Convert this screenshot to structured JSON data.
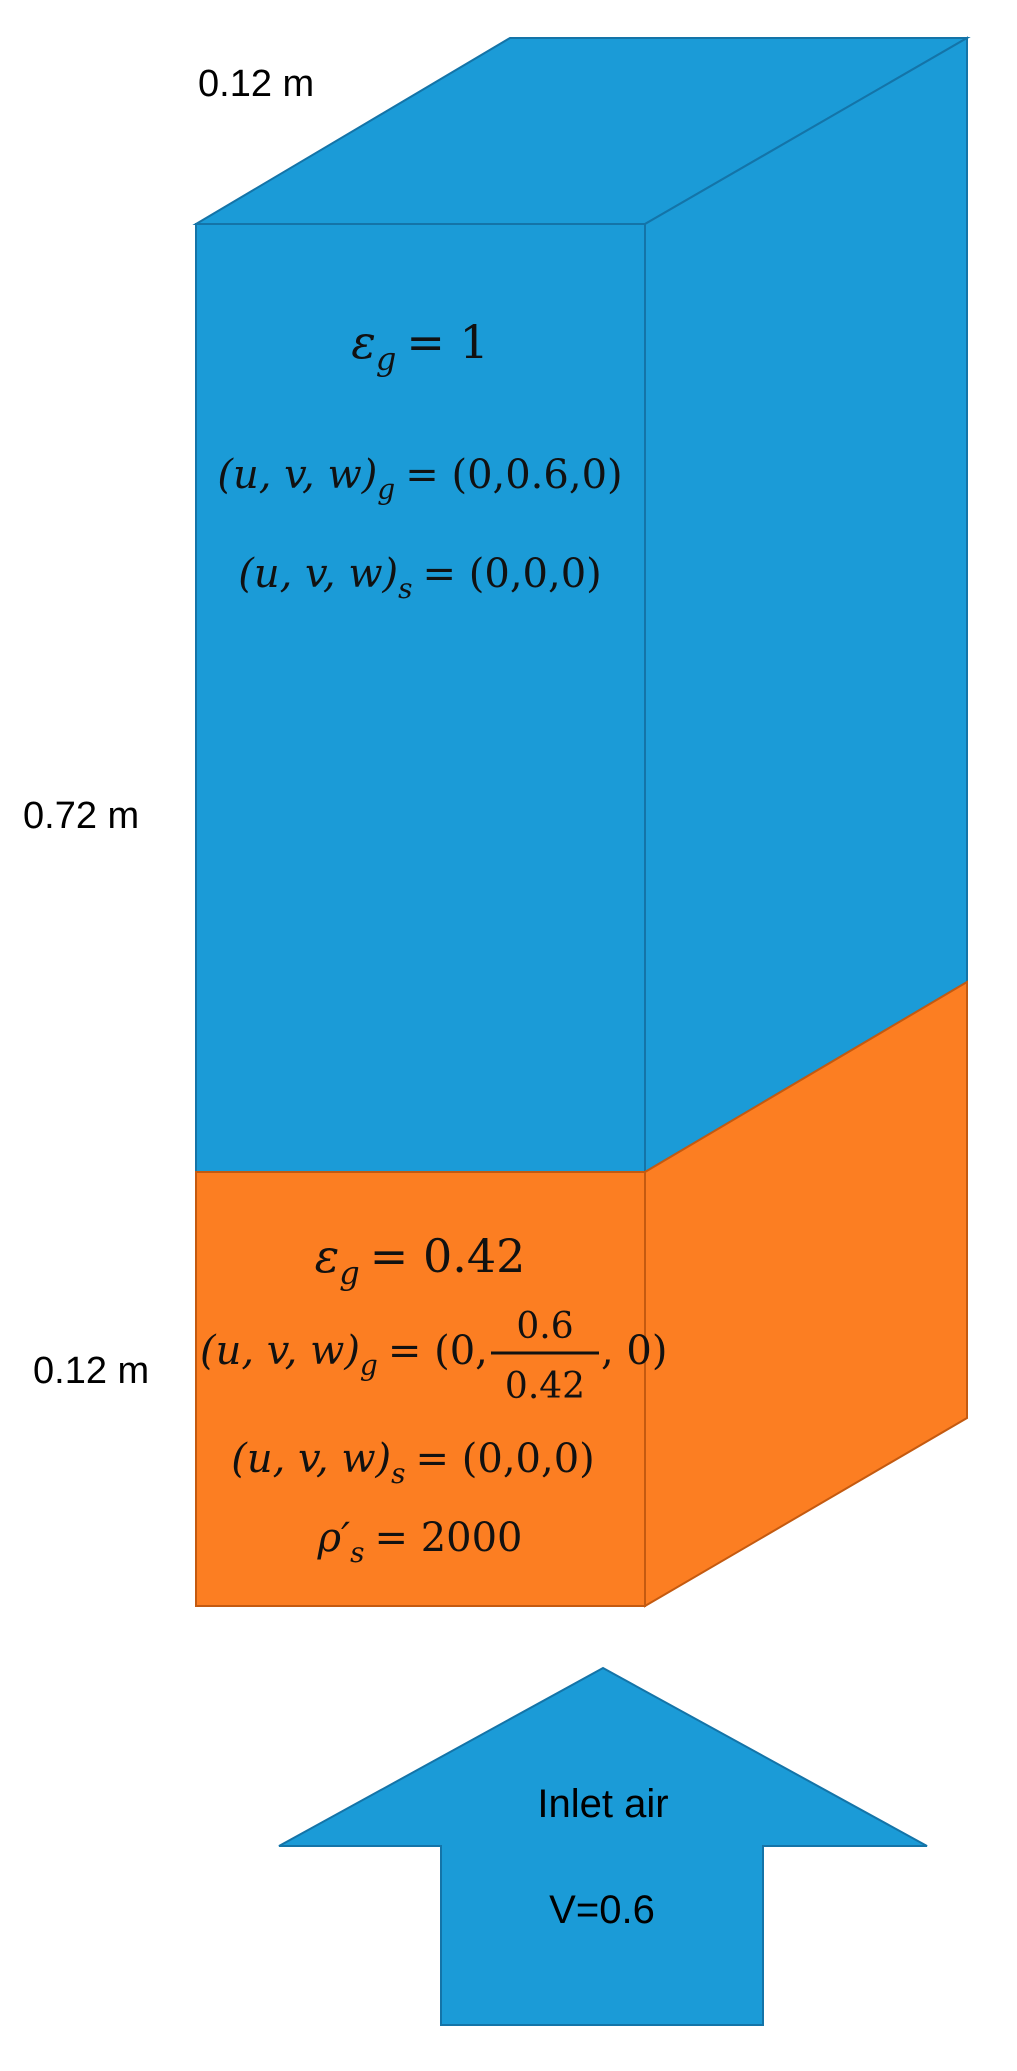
{
  "colors": {
    "gas_region": "#1b9bd7",
    "gas_outline": "#1474a8",
    "bed_region": "#fc7e22",
    "bed_outline": "#c45a10",
    "text": "#000000"
  },
  "dimensions": {
    "depth_label": "0.12 m",
    "freeboard_height_label": "0.72 m",
    "bed_height_label": "0.12 m"
  },
  "freeboard": {
    "eps_sym": "ε",
    "eps_sub": "g",
    "eps_val": "= 1",
    "ug_lhs": "(u, v, w)",
    "ug_sub": "g",
    "ug_rhs": "= (0,0.6,0)",
    "us_lhs": "(u, v, w)",
    "us_sub": "s",
    "us_rhs": "= (0,0,0)"
  },
  "bed": {
    "eps_sym": "ε",
    "eps_sub": "g",
    "eps_val": "= 0.42",
    "ug_lhs": "(u, v, w)",
    "ug_sub": "g",
    "ug_eq": "= (0,",
    "ug_num": "0.6",
    "ug_den": "0.42",
    "ug_tail": ", 0)",
    "us_lhs": "(u, v, w)",
    "us_sub": "s",
    "us_rhs": "= (0,0,0)",
    "rho_sym": "ρ′",
    "rho_sub": "s",
    "rho_val": "= 2000"
  },
  "inlet": {
    "title": "Inlet air",
    "velocity": "V=0.6"
  }
}
